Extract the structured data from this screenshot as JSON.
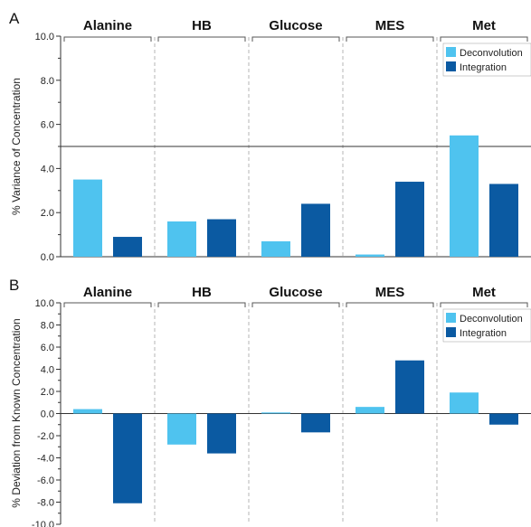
{
  "colors": {
    "deconvolution": "#4fc3ef",
    "integration": "#0b5aa2",
    "axis": "#333333",
    "divider": "#b5b5b5"
  },
  "chart_data": [
    {
      "panel": "A",
      "type": "bar",
      "ylabel": "% Variance of Concentration",
      "ylim": [
        0,
        10
      ],
      "yticks": [
        "0.0",
        "2.0",
        "4.0",
        "6.0",
        "8.0",
        "10.0"
      ],
      "reference_line": 5.0,
      "categories": [
        "Alanine",
        "HB",
        "Glucose",
        "MES",
        "Met"
      ],
      "series": [
        {
          "name": "Deconvolution",
          "values": [
            3.5,
            1.6,
            0.7,
            0.1,
            5.5
          ]
        },
        {
          "name": "Integration",
          "values": [
            0.9,
            1.7,
            2.4,
            3.4,
            3.3
          ]
        }
      ],
      "legend_position": "top-right"
    },
    {
      "panel": "B",
      "type": "bar",
      "ylabel": "% Deviation from Known Concentration",
      "ylim": [
        -10,
        10
      ],
      "yticks": [
        "-10.0",
        "-8.0",
        "-6.0",
        "-4.0",
        "-2.0",
        "0.0",
        "2.0",
        "4.0",
        "6.0",
        "8.0",
        "10.0"
      ],
      "categories": [
        "Alanine",
        "HB",
        "Glucose",
        "MES",
        "Met"
      ],
      "series": [
        {
          "name": "Deconvolution",
          "values": [
            0.4,
            -2.8,
            0.1,
            0.6,
            1.9
          ]
        },
        {
          "name": "Integration",
          "values": [
            -8.1,
            -3.6,
            -1.7,
            4.8,
            -1.0
          ]
        }
      ],
      "legend_position": "top-right"
    }
  ]
}
